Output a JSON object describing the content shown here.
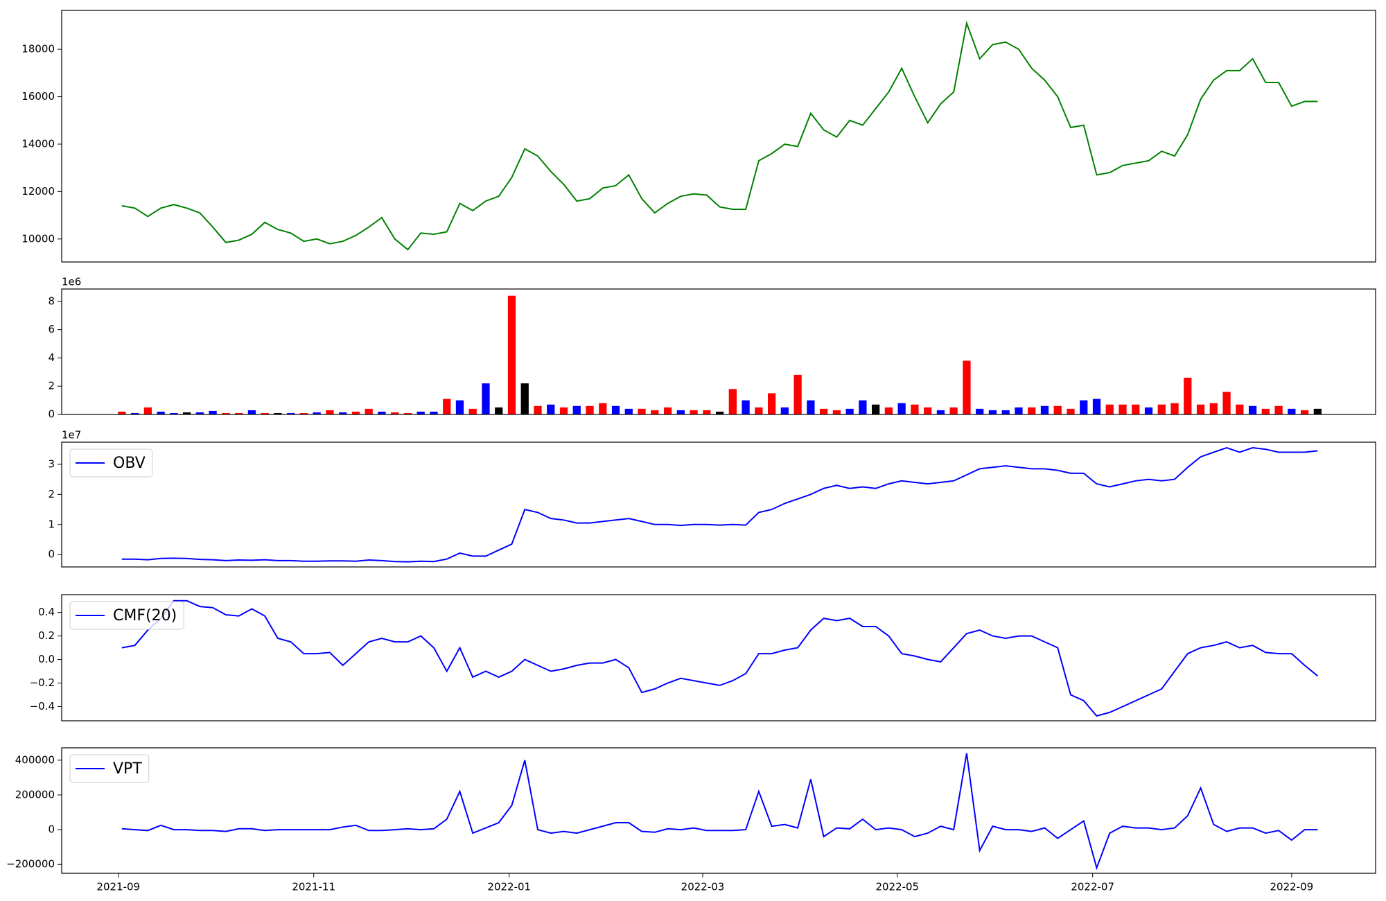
{
  "chart_data": [
    {
      "type": "line",
      "ylim": [
        9030,
        19640
      ],
      "yticks": [
        10000,
        12000,
        14000,
        16000,
        18000
      ],
      "series": [
        {
          "color": "green",
          "values": [
            11400,
            11300,
            10950,
            11300,
            11450,
            11300,
            11100,
            10500,
            9850,
            9950,
            10200,
            10700,
            10400,
            10250,
            9900,
            10000,
            9800,
            9900,
            10150,
            10500,
            10900,
            10000,
            9550,
            10250,
            10200,
            10300,
            11500,
            11200,
            11600,
            11800,
            12600,
            13800,
            13500,
            12850,
            12300,
            11600,
            11700,
            12150,
            12250,
            12700,
            11700,
            11100,
            11500,
            11800,
            11900,
            11850,
            11350,
            11250,
            11250,
            13300,
            13600,
            14000,
            13900,
            15300,
            14600,
            14300,
            15000,
            14800,
            15500,
            16200,
            17200,
            16000,
            14900,
            15700,
            16200,
            19100,
            17600,
            18200,
            18300,
            18000,
            17200,
            16700,
            16000,
            14700,
            14800,
            12700,
            12800,
            13100,
            13200,
            13300,
            13700,
            13500,
            14400,
            15900,
            16700,
            17100,
            17100,
            17600,
            16600,
            16600,
            15600,
            15800,
            15800
          ]
        }
      ]
    },
    {
      "type": "bar",
      "ylim": [
        0,
        8.875
      ],
      "yticks": [
        0,
        2,
        4,
        6,
        8
      ],
      "y_offset": "1e6",
      "values": [
        0.2,
        0.1,
        0.5,
        0.2,
        0.1,
        0.15,
        0.15,
        0.25,
        0.1,
        0.1,
        0.3,
        0.1,
        0.1,
        0.1,
        0.1,
        0.15,
        0.3,
        0.15,
        0.2,
        0.4,
        0.2,
        0.15,
        0.1,
        0.2,
        0.2,
        1.1,
        1.0,
        0.4,
        2.2,
        0.5,
        8.4,
        2.2,
        0.6,
        0.7,
        0.5,
        0.6,
        0.6,
        0.8,
        0.6,
        0.4,
        0.4,
        0.3,
        0.5,
        0.3,
        0.3,
        0.3,
        0.2,
        1.8,
        1.0,
        0.5,
        1.5,
        0.5,
        2.8,
        1.0,
        0.4,
        0.3,
        0.4,
        1.0,
        0.7,
        0.5,
        0.8,
        0.7,
        0.5,
        0.3,
        0.5,
        3.8,
        0.4,
        0.3,
        0.3,
        0.5,
        0.5,
        0.6,
        0.6,
        0.4,
        1.0,
        1.1,
        0.7,
        0.7,
        0.7,
        0.5,
        0.7,
        0.8,
        2.6,
        0.7,
        0.8,
        1.6,
        0.7,
        0.6,
        0.4,
        0.6,
        0.4,
        0.3,
        0.4
      ],
      "colors": [
        "red",
        "blue",
        "red",
        "blue",
        "blue",
        "black",
        "blue",
        "blue",
        "red",
        "red",
        "blue",
        "red",
        "black",
        "blue",
        "red",
        "blue",
        "red",
        "blue",
        "red",
        "red",
        "blue",
        "red",
        "red",
        "blue",
        "blue",
        "red",
        "blue",
        "red",
        "blue",
        "black",
        "red",
        "black",
        "red",
        "blue",
        "red",
        "blue",
        "red",
        "red",
        "blue",
        "blue",
        "red",
        "red",
        "red",
        "blue",
        "red",
        "red",
        "black",
        "red",
        "blue",
        "red",
        "red",
        "blue",
        "red",
        "blue",
        "red",
        "red",
        "blue",
        "blue",
        "black",
        "red",
        "blue",
        "red",
        "red",
        "blue",
        "red",
        "red",
        "blue",
        "blue",
        "blue",
        "blue",
        "red",
        "blue",
        "red",
        "red",
        "blue",
        "blue",
        "red",
        "red",
        "red",
        "blue",
        "red",
        "red",
        "red",
        "red",
        "red",
        "red",
        "red",
        "blue",
        "red",
        "red",
        "blue",
        "red",
        "black"
      ]
    },
    {
      "type": "line",
      "ylim": [
        -0.41,
        3.735
      ],
      "yticks": [
        0,
        1,
        2,
        3
      ],
      "y_offset": "1e7",
      "legend": "upper left",
      "series": [
        {
          "name": "OBV",
          "color": "blue",
          "values": [
            -0.15,
            -0.15,
            -0.17,
            -0.13,
            -0.12,
            -0.13,
            -0.16,
            -0.17,
            -0.2,
            -0.18,
            -0.19,
            -0.17,
            -0.2,
            -0.2,
            -0.22,
            -0.22,
            -0.21,
            -0.21,
            -0.22,
            -0.18,
            -0.2,
            -0.23,
            -0.24,
            -0.22,
            -0.23,
            -0.15,
            0.05,
            -0.05,
            -0.05,
            0.15,
            0.35,
            1.5,
            1.4,
            1.2,
            1.15,
            1.05,
            1.05,
            1.1,
            1.15,
            1.2,
            1.1,
            1.0,
            1.0,
            0.97,
            1.0,
            1.0,
            0.98,
            1.0,
            0.98,
            1.4,
            1.5,
            1.7,
            1.85,
            2.0,
            2.2,
            2.3,
            2.2,
            2.25,
            2.2,
            2.35,
            2.45,
            2.4,
            2.35,
            2.4,
            2.45,
            2.65,
            2.85,
            2.9,
            2.95,
            2.9,
            2.85,
            2.85,
            2.8,
            2.7,
            2.7,
            2.35,
            2.25,
            2.35,
            2.45,
            2.5,
            2.45,
            2.5,
            2.9,
            3.25,
            3.4,
            3.55,
            3.4,
            3.55,
            3.5,
            3.4,
            3.4,
            3.4,
            3.45
          ]
        }
      ]
    },
    {
      "type": "line",
      "ylim": [
        -0.521,
        0.551
      ],
      "yticks": [
        {
          "value": -0.4,
          "label": "−0.4"
        },
        {
          "value": -0.2,
          "label": "−0.2"
        },
        {
          "value": 0,
          "label": "0.0"
        },
        0.2,
        0.4
      ],
      "legend": "upper left",
      "series": [
        {
          "name": "CMF(20)",
          "color": "blue",
          "values": [
            0.1,
            0.12,
            0.25,
            0.35,
            0.5,
            0.5,
            0.45,
            0.44,
            0.38,
            0.37,
            0.43,
            0.37,
            0.18,
            0.15,
            0.05,
            0.05,
            0.06,
            -0.05,
            0.05,
            0.15,
            0.18,
            0.15,
            0.15,
            0.2,
            0.1,
            -0.1,
            0.1,
            -0.15,
            -0.1,
            -0.15,
            -0.1,
            0.0,
            -0.05,
            -0.1,
            -0.08,
            -0.05,
            -0.03,
            -0.03,
            0.0,
            -0.07,
            -0.28,
            -0.25,
            -0.2,
            -0.16,
            -0.18,
            -0.2,
            -0.22,
            -0.18,
            -0.12,
            0.05,
            0.05,
            0.08,
            0.1,
            0.25,
            0.35,
            0.33,
            0.35,
            0.28,
            0.28,
            0.2,
            0.05,
            0.03,
            0.0,
            -0.02,
            0.1,
            0.22,
            0.25,
            0.2,
            0.18,
            0.2,
            0.2,
            0.15,
            0.1,
            -0.3,
            -0.35,
            -0.48,
            -0.45,
            -0.4,
            -0.35,
            -0.3,
            -0.25,
            -0.1,
            0.05,
            0.1,
            0.12,
            0.15,
            0.1,
            0.12,
            0.06,
            0.05,
            0.05,
            -0.05,
            -0.14
          ]
        }
      ]
    },
    {
      "type": "line",
      "ylim": [
        -251000,
        471000
      ],
      "yticks": [
        {
          "value": -200000,
          "label": "−200000"
        },
        0,
        200000,
        400000
      ],
      "legend": "upper left",
      "xlim": [
        -4.63,
        96.46
      ],
      "xticks": [
        {
          "value": -0.27,
          "label": "2021-09"
        },
        {
          "value": 14.76,
          "label": "2021-11"
        },
        {
          "value": 29.8,
          "label": "2022-01"
        },
        {
          "value": 44.69,
          "label": "2022-03"
        },
        {
          "value": 59.66,
          "label": "2022-05"
        },
        {
          "value": 74.69,
          "label": "2022-07"
        },
        {
          "value": 90.0,
          "label": "2022-09"
        }
      ],
      "series": [
        {
          "name": "VPT",
          "color": "blue",
          "values": [
            5000,
            0,
            -5000,
            25000,
            0,
            0,
            -5000,
            -5000,
            -10000,
            5000,
            5000,
            -5000,
            0,
            0,
            0,
            0,
            0,
            15000,
            25000,
            -5000,
            -5000,
            0,
            5000,
            0,
            5000,
            60000,
            220000,
            -20000,
            10000,
            40000,
            140000,
            400000,
            0,
            -20000,
            -10000,
            -20000,
            0,
            20000,
            40000,
            40000,
            -10000,
            -15000,
            5000,
            0,
            10000,
            -5000,
            -5000,
            -5000,
            0,
            220000,
            20000,
            30000,
            10000,
            290000,
            -40000,
            10000,
            5000,
            60000,
            0,
            10000,
            0,
            -40000,
            -20000,
            20000,
            0,
            440000,
            -120000,
            20000,
            0,
            0,
            -10000,
            10000,
            -50000,
            0,
            50000,
            -220000,
            -20000,
            20000,
            10000,
            10000,
            0,
            10000,
            80000,
            240000,
            30000,
            -10000,
            10000,
            10000,
            -20000,
            -5000,
            -60000,
            0,
            0
          ]
        }
      ]
    }
  ]
}
